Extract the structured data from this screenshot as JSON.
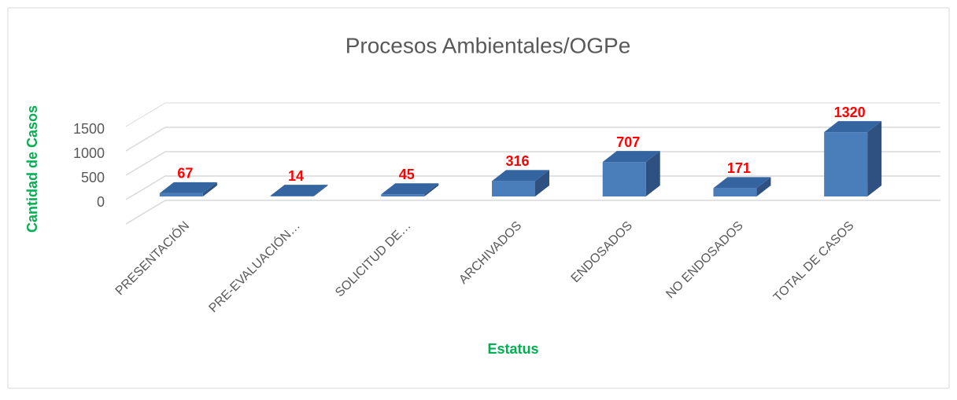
{
  "chart_data": {
    "type": "bar",
    "title": "Procesos Ambientales/OGPe",
    "x_label": "Estatus",
    "y_label": "Cantidad de Casos",
    "categories": [
      "PRESENTACIÓN",
      "PRE-EVALUACIÓN…",
      "SOLICITUD DE…",
      "ARCHIVADOS",
      "ENDOSADOS",
      "NO ENDOSADOS",
      "TOTAL DE CASOS"
    ],
    "values": [
      67,
      14,
      45,
      316,
      707,
      171,
      1320
    ],
    "color": "#4a7ebb",
    "ylim": [
      0,
      2000
    ],
    "yticks": [
      0,
      500,
      1000,
      1500
    ],
    "grid": true
  }
}
